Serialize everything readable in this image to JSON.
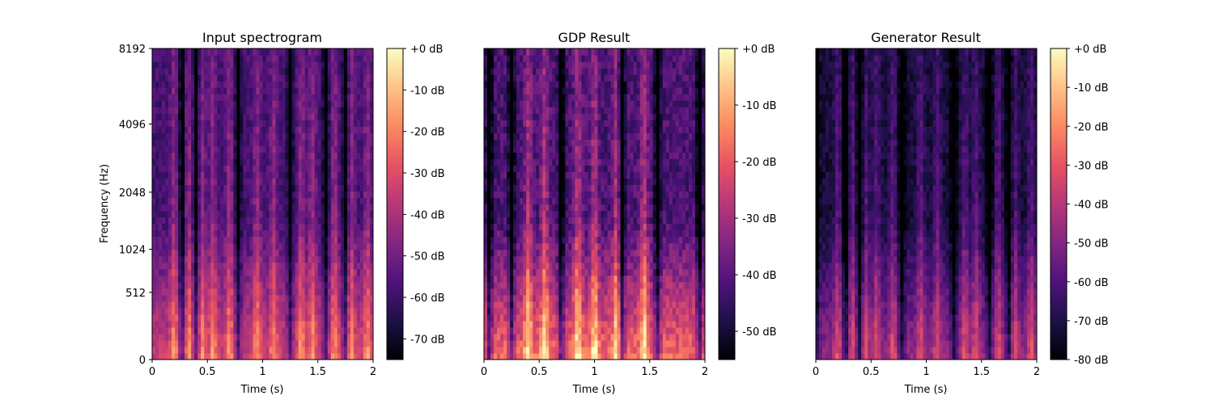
{
  "colormap": [
    "#000004",
    "#1d1147",
    "#51127c",
    "#822681",
    "#b73779",
    "#e75263",
    "#fc8961",
    "#fec287",
    "#fcfdbf"
  ],
  "chart_data": [
    {
      "type": "heatmap",
      "title": "Input spectrogram",
      "xlabel": "Time (s)",
      "ylabel": "Frequency (Hz)",
      "x_ticks": [
        "0",
        "0.5",
        "1",
        "1.5",
        "2"
      ],
      "x_tick_values": [
        0,
        0.5,
        1,
        1.5,
        2
      ],
      "xlim": [
        0,
        2
      ],
      "y_scale": "mel",
      "y_ticks": [
        "0",
        "512",
        "1024",
        "2048",
        "4096",
        "8192"
      ],
      "y_tick_values": [
        0,
        512,
        1024,
        2048,
        4096,
        8192
      ],
      "ylim": [
        0,
        8192
      ],
      "colorbar": {
        "ticks": [
          "+0 dB",
          "-10 dB",
          "-20 dB",
          "-30 dB",
          "-40 dB",
          "-50 dB",
          "-60 dB",
          "-70 dB"
        ],
        "tick_values": [
          0,
          -10,
          -20,
          -30,
          -40,
          -50,
          -60,
          -70
        ],
        "range": [
          -75,
          0
        ]
      },
      "profile": {
        "onsets_s": [
          0.2,
          0.33,
          0.45,
          0.55,
          0.7,
          0.95,
          1.1,
          1.35,
          1.45,
          1.65,
          1.8,
          1.95
        ],
        "gaps_s": [
          0.27,
          0.4,
          0.78,
          1.25,
          1.57,
          1.75
        ],
        "floor_db": -58
      }
    },
    {
      "type": "heatmap",
      "title": "GDP Result",
      "xlabel": "Time (s)",
      "ylabel": "",
      "x_ticks": [
        "0",
        "0.5",
        "1",
        "1.5",
        "2"
      ],
      "x_tick_values": [
        0,
        0.5,
        1,
        1.5,
        2
      ],
      "xlim": [
        0,
        2
      ],
      "y_scale": "mel",
      "y_ticks": [],
      "ylim": [
        0,
        8192
      ],
      "colorbar": {
        "ticks": [
          "+0 dB",
          "-10 dB",
          "-20 dB",
          "-30 dB",
          "-40 dB",
          "-50 dB"
        ],
        "tick_values": [
          0,
          -10,
          -20,
          -30,
          -40,
          -50
        ],
        "range": [
          -55,
          0
        ]
      },
      "profile": {
        "onsets_s": [
          0.4,
          0.55,
          0.85,
          1.0,
          1.2,
          1.45
        ],
        "gaps_s": [
          0.05,
          0.25,
          0.7,
          1.25,
          1.57,
          1.95
        ],
        "floor_db": -42
      }
    },
    {
      "type": "heatmap",
      "title": "Generator Result",
      "xlabel": "Time (s)",
      "ylabel": "",
      "x_ticks": [
        "0",
        "0.5",
        "1",
        "1.5",
        "2"
      ],
      "x_tick_values": [
        0,
        0.5,
        1,
        1.5,
        2
      ],
      "xlim": [
        0,
        2
      ],
      "y_scale": "mel",
      "y_ticks": [],
      "ylim": [
        0,
        8192
      ],
      "colorbar": {
        "ticks": [
          "+0 dB",
          "-10 dB",
          "-20 dB",
          "-30 dB",
          "-40 dB",
          "-50 dB",
          "-60 dB",
          "-70 dB",
          "-80 dB"
        ],
        "tick_values": [
          0,
          -10,
          -20,
          -30,
          -40,
          -50,
          -60,
          -70,
          -80
        ],
        "range": [
          -80,
          0
        ]
      },
      "profile": {
        "onsets_s": [
          0.2,
          0.33,
          0.45,
          0.55,
          0.7,
          0.95,
          1.1,
          1.35,
          1.45,
          1.65,
          1.8,
          1.95
        ],
        "gaps_s": [
          0.0,
          0.27,
          0.4,
          0.78,
          1.25,
          1.57,
          1.75
        ],
        "floor_db": -72
      }
    }
  ]
}
